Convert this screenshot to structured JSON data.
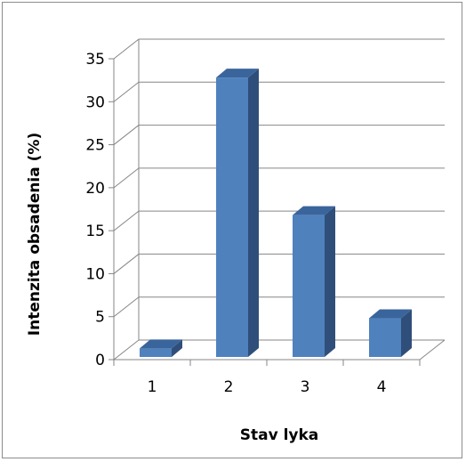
{
  "chart_data": {
    "type": "bar",
    "title": "",
    "xlabel": "Stav lyka",
    "ylabel": "Intenzita obsadenia (%)",
    "categories": [
      "1",
      "2",
      "3",
      "4"
    ],
    "values": [
      1,
      32.5,
      16.5,
      4.5
    ],
    "ylim": [
      0,
      35
    ],
    "yticks": [
      "0",
      "5",
      "10",
      "15",
      "20",
      "25",
      "30",
      "35"
    ],
    "grid": true,
    "legend": "none",
    "bar_color": "#4f81bd",
    "bar_side_color": "#2f4f7a",
    "bar_top_color": "#3a659c"
  }
}
